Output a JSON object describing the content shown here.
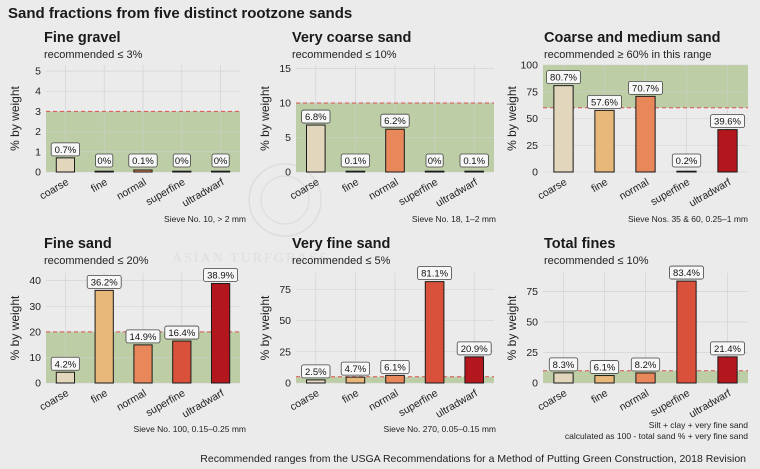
{
  "title": "Sand fractions from five distinct rootzone sands",
  "caption": "Recommended ranges from the USGA Recommendations for a Method of Putting Green Construction, 2018 Revision",
  "watermark": "ASIAN TURFGRASS",
  "colors": {
    "background": "#ebebeb",
    "panel": "#ebebeb",
    "recommended_band": "#b5c99a",
    "threshold_line": "#d9534f",
    "bar_coarse": "#e2d6bc",
    "bar_fine": "#e8b77a",
    "bar_normal": "#e8875a",
    "bar_superfine": "#d9513b",
    "bar_ultradwarf": "#b4161d"
  },
  "chart_data": [
    {
      "type": "bar",
      "title": "Fine gravel",
      "subtitle": "recommended ≤ 3%",
      "ylabel": "% by weight",
      "categories": [
        "coarse",
        "fine",
        "normal",
        "superfine",
        "ultradwarf"
      ],
      "values": [
        0.7,
        0,
        0.1,
        0,
        0
      ],
      "labels": [
        "0.7%",
        "0%",
        "0.1%",
        "0%",
        "0%"
      ],
      "ylim": [
        0,
        5.3
      ],
      "yticks": [
        0,
        1,
        2,
        3,
        4,
        5
      ],
      "recommended_range": [
        0,
        3
      ],
      "note": "Sieve No. 10, > 2 mm"
    },
    {
      "type": "bar",
      "title": "Very coarse sand",
      "subtitle": "recommended ≤ 10%",
      "ylabel": "% by weight",
      "categories": [
        "coarse",
        "fine",
        "normal",
        "superfine",
        "ultradwarf"
      ],
      "values": [
        6.8,
        0.1,
        6.2,
        0,
        0.1
      ],
      "labels": [
        "6.8%",
        "0.1%",
        "6.2%",
        "0%",
        "0.1%"
      ],
      "ylim": [
        0,
        15.5
      ],
      "yticks": [
        0,
        5,
        10,
        15
      ],
      "recommended_range": [
        0,
        10
      ],
      "note": "Sieve No. 18, 1–2 mm"
    },
    {
      "type": "bar",
      "title": "Coarse and medium sand",
      "subtitle": "recommended ≥ 60% in this range",
      "ylabel": "% by weight",
      "categories": [
        "coarse",
        "fine",
        "normal",
        "superfine",
        "ultradwarf"
      ],
      "values": [
        80.7,
        57.6,
        70.7,
        0.2,
        39.6
      ],
      "labels": [
        "80.7%",
        "57.6%",
        "70.7%",
        "0.2%",
        "39.6%"
      ],
      "ylim": [
        0,
        100
      ],
      "yticks": [
        0,
        25,
        50,
        75,
        100
      ],
      "recommended_range": [
        60,
        100
      ],
      "note": "Sieve Nos. 35 & 60, 0.25–1 mm"
    },
    {
      "type": "bar",
      "title": "Fine sand",
      "subtitle": "recommended ≤ 20%",
      "ylabel": "% by weight",
      "categories": [
        "coarse",
        "fine",
        "normal",
        "superfine",
        "ultradwarf"
      ],
      "values": [
        4.2,
        36.2,
        14.9,
        16.4,
        38.9
      ],
      "labels": [
        "4.2%",
        "36.2%",
        "14.9%",
        "16.4%",
        "38.9%"
      ],
      "ylim": [
        0,
        43
      ],
      "yticks": [
        0,
        10,
        20,
        30,
        40
      ],
      "recommended_range": [
        0,
        20
      ],
      "note": "Sieve No. 100, 0.15–0.25 mm"
    },
    {
      "type": "bar",
      "title": "Very fine sand",
      "subtitle": "recommended ≤ 5%",
      "ylabel": "% by weight",
      "categories": [
        "coarse",
        "fine",
        "normal",
        "superfine",
        "ultradwarf"
      ],
      "values": [
        2.5,
        4.7,
        6.1,
        81.1,
        20.9
      ],
      "labels": [
        "2.5%",
        "4.7%",
        "6.1%",
        "81.1%",
        "20.9%"
      ],
      "ylim": [
        0,
        88
      ],
      "yticks": [
        0,
        25,
        50,
        75
      ],
      "recommended_range": [
        0,
        5
      ],
      "note": "Sieve No. 270, 0.05–0.15 mm"
    },
    {
      "type": "bar",
      "title": "Total fines",
      "subtitle": "recommended ≤ 10%",
      "ylabel": "% by weight",
      "categories": [
        "coarse",
        "fine",
        "normal",
        "superfine",
        "ultradwarf"
      ],
      "values": [
        8.3,
        6.1,
        8.2,
        83.4,
        21.4
      ],
      "labels": [
        "8.3%",
        "6.1%",
        "8.2%",
        "83.4%",
        "21.4%"
      ],
      "ylim": [
        0,
        90
      ],
      "yticks": [
        0,
        25,
        50,
        75
      ],
      "recommended_range": [
        0,
        10
      ],
      "note": "Silt + clay + very fine sand",
      "note2": "calculated as 100 - total sand % + very fine sand"
    }
  ]
}
